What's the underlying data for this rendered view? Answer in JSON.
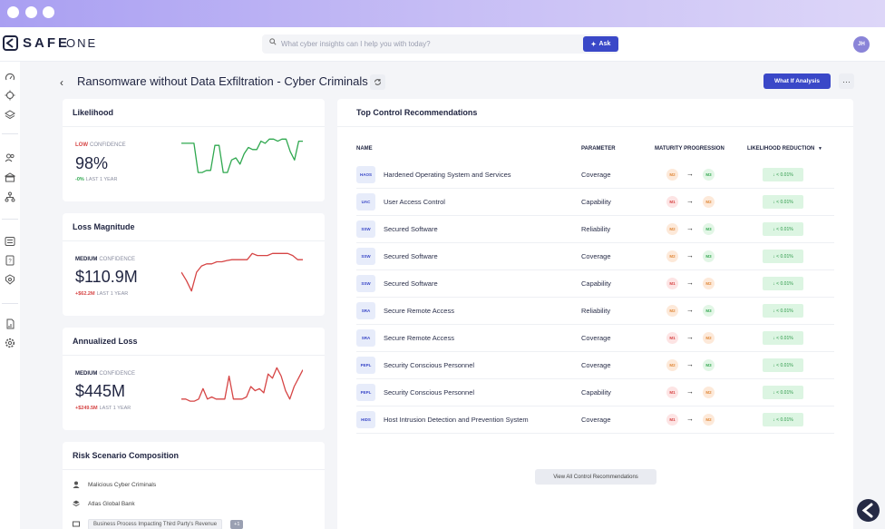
{
  "app": {
    "brand_main": "SAFE",
    "brand_sub": "ONE"
  },
  "search": {
    "placeholder": "What cyber insights can I help you with today?",
    "ask_label": "Ask"
  },
  "user": {
    "initials": "JH"
  },
  "page": {
    "title": "Ransomware without Data Exfiltration - Cyber Criminals",
    "what_if_label": "What If Analysis",
    "more_label": "···"
  },
  "likelihood": {
    "title": "Likelihood",
    "confidence_level": "LOW",
    "confidence_label": "CONFIDENCE",
    "value": "98%",
    "delta": "-0%",
    "delta_label": "LAST 1 YEAR",
    "delta_color": "#2fa84f",
    "level_color": "#d64545",
    "trend": [
      0.15,
      0.15,
      0.15,
      0.15,
      0.85,
      0.85,
      0.8,
      0.8,
      0.2,
      0.2,
      0.85,
      0.85,
      0.55,
      0.5,
      0.65,
      0.4,
      0.25,
      0.3,
      0.3,
      0.1,
      0.15,
      0.05,
      0.05,
      0.1,
      0.05,
      0.05,
      0.35,
      0.55,
      0.1,
      0.1
    ]
  },
  "loss_magnitude": {
    "title": "Loss Magnitude",
    "confidence_level": "MEDIUM",
    "confidence_label": "CONFIDENCE",
    "value": "$110.9M",
    "delta": "+$62.2M",
    "delta_label": "LAST 1 YEAR",
    "delta_color": "#d64545",
    "level_color": "#1f2440",
    "trend": [
      0.5,
      0.7,
      0.95,
      0.5,
      0.35,
      0.3,
      0.3,
      0.25,
      0.25,
      0.22,
      0.2,
      0.2,
      0.2,
      0.2,
      0.05,
      0.1,
      0.1,
      0.1,
      0.05,
      0.05,
      0.05,
      0.05,
      0.1,
      0.2,
      0.2
    ]
  },
  "annualized_loss": {
    "title": "Annualized Loss",
    "confidence_level": "MEDIUM",
    "confidence_label": "CONFIDENCE",
    "value": "$445M",
    "delta": "+$249.5M",
    "delta_label": "LAST 1 YEAR",
    "delta_color": "#d64545",
    "level_color": "#1f2440",
    "trend": [
      0.8,
      0.8,
      0.85,
      0.85,
      0.8,
      0.55,
      0.8,
      0.75,
      0.8,
      0.8,
      0.8,
      0.25,
      0.8,
      0.8,
      0.8,
      0.75,
      0.5,
      0.6,
      0.55,
      0.65,
      0.2,
      0.3,
      0.05,
      0.25,
      0.6,
      0.8,
      0.5,
      0.3,
      0.1
    ]
  },
  "composition": {
    "title": "Risk Scenario Composition",
    "threat": "Malicious Cyber Criminals",
    "asset": "Atlas Global Bank",
    "process": "Business Process Impacting Third Party's Revenue",
    "more": "+1"
  },
  "recommendations": {
    "title": "Top Control Recommendations",
    "headers": {
      "name": "NAME",
      "parameter": "PARAMETER",
      "maturity": "MATURITY PROGRESSION",
      "reduction": "LIKELIHOOD REDUCTION"
    },
    "sort_icon": "sort-desc-icon",
    "rows": [
      {
        "abbr": "HAOS",
        "name": "Hardened Operating System and Services",
        "parameter": "Coverage",
        "from": "M2",
        "to": "M3",
        "reduction": "↓ < 0.01%"
      },
      {
        "abbr": "UAC",
        "name": "User Access Control",
        "parameter": "Capability",
        "from": "M1",
        "to": "M2",
        "reduction": "↓ < 0.01%"
      },
      {
        "abbr": "SSW",
        "name": "Secured Software",
        "parameter": "Reliability",
        "from": "M2",
        "to": "M3",
        "reduction": "↓ < 0.01%"
      },
      {
        "abbr": "SSW",
        "name": "Secured Software",
        "parameter": "Coverage",
        "from": "M2",
        "to": "M3",
        "reduction": "↓ < 0.01%"
      },
      {
        "abbr": "SSW",
        "name": "Secured Software",
        "parameter": "Capability",
        "from": "M1",
        "to": "M2",
        "reduction": "↓ < 0.01%"
      },
      {
        "abbr": "SRA",
        "name": "Secure Remote Access",
        "parameter": "Reliability",
        "from": "M2",
        "to": "M3",
        "reduction": "↓ < 0.01%"
      },
      {
        "abbr": "SRA",
        "name": "Secure Remote Access",
        "parameter": "Coverage",
        "from": "M1",
        "to": "M2",
        "reduction": "↓ < 0.01%"
      },
      {
        "abbr": "PEPL",
        "name": "Security Conscious Personnel",
        "parameter": "Coverage",
        "from": "M2",
        "to": "M3",
        "reduction": "↓ < 0.01%"
      },
      {
        "abbr": "PEPL",
        "name": "Security Conscious Personnel",
        "parameter": "Capability",
        "from": "M1",
        "to": "M2",
        "reduction": "↓ < 0.01%"
      },
      {
        "abbr": "HIDS",
        "name": "Host Intrusion Detection and Prevention System",
        "parameter": "Coverage",
        "from": "M1",
        "to": "M2",
        "reduction": "↓ < 0.01%"
      }
    ],
    "view_all": "View All Control Recommendations"
  },
  "colors": {
    "accent": "#3a48c8",
    "green": "#2fa84f",
    "red": "#d64545"
  }
}
